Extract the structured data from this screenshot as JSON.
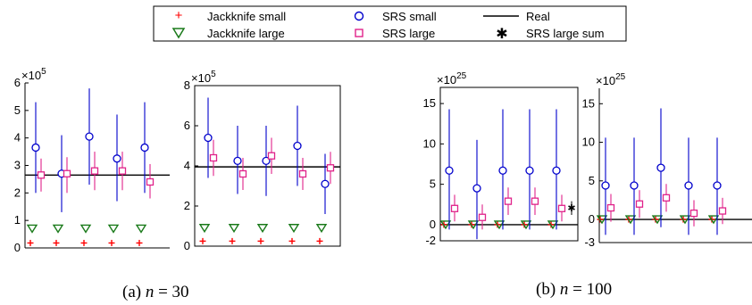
{
  "legend": {
    "jk_small": "Jackknife small",
    "jk_large": "Jackknife large",
    "srs_small": "SRS small",
    "srs_large": "SRS large",
    "real": "Real",
    "srs_sum": "SRS large sum"
  },
  "captions": {
    "a_prefix": "(a)",
    "a_var": "n",
    "a_eq": " = 30",
    "b_prefix": "(b)",
    "b_var": "n",
    "b_eq": " = 100"
  },
  "colors": {
    "jk_small": "#ff0000",
    "jk_large": "#1a7a1a",
    "srs_small": "#0000cc",
    "srs_large": "#e0228a",
    "real": "#000000",
    "srs_sum": "#000000"
  },
  "chart_data": [
    {
      "type": "scatter",
      "panel": "a1",
      "multiplier_base": "×10",
      "multiplier_exp": "5",
      "ylim": [
        0,
        6
      ],
      "yticks": [
        "0",
        "1",
        "2",
        "3",
        "4",
        "5",
        "6"
      ],
      "real": 2.65,
      "groups": [
        {
          "jk_small": 0.18,
          "jk_large": 0.7,
          "srs_small": [
            3.65,
            2.0,
            5.3
          ],
          "srs_large": [
            2.65,
            2.05,
            3.25
          ]
        },
        {
          "jk_small": 0.18,
          "jk_large": 0.7,
          "srs_small": [
            2.7,
            1.3,
            4.1
          ],
          "srs_large": [
            2.7,
            2.0,
            3.3
          ]
        },
        {
          "jk_small": 0.18,
          "jk_large": 0.7,
          "srs_small": [
            4.05,
            2.3,
            5.8
          ],
          "srs_large": [
            2.8,
            2.1,
            3.5
          ]
        },
        {
          "jk_small": 0.18,
          "jk_large": 0.7,
          "srs_small": [
            3.25,
            1.7,
            4.85
          ],
          "srs_large": [
            2.8,
            2.1,
            3.5
          ]
        },
        {
          "jk_small": 0.18,
          "jk_large": 0.7,
          "srs_small": [
            3.65,
            2.0,
            5.3
          ],
          "srs_large": [
            2.4,
            1.8,
            3.05
          ]
        }
      ]
    },
    {
      "type": "scatter",
      "panel": "a2",
      "multiplier_base": "×10",
      "multiplier_exp": "5",
      "ylim": [
        0,
        8
      ],
      "yticks": [
        "0",
        "2",
        "4",
        "6",
        "8"
      ],
      "real": 3.95,
      "groups": [
        {
          "jk_small": 0.25,
          "jk_large": 0.9,
          "srs_small": [
            5.4,
            3.4,
            7.4
          ],
          "srs_large": [
            4.4,
            3.5,
            5.3
          ]
        },
        {
          "jk_small": 0.25,
          "jk_large": 0.9,
          "srs_small": [
            4.25,
            2.6,
            6.0
          ],
          "srs_large": [
            3.6,
            2.8,
            4.4
          ]
        },
        {
          "jk_small": 0.25,
          "jk_large": 0.9,
          "srs_small": [
            4.25,
            2.5,
            6.0
          ],
          "srs_large": [
            4.5,
            3.6,
            5.4
          ]
        },
        {
          "jk_small": 0.25,
          "jk_large": 0.9,
          "srs_small": [
            5.0,
            3.0,
            7.0
          ],
          "srs_large": [
            3.6,
            2.8,
            4.4
          ]
        },
        {
          "jk_small": 0.25,
          "jk_large": 0.9,
          "srs_small": [
            3.1,
            1.6,
            4.6
          ],
          "srs_large": [
            3.9,
            3.1,
            4.7
          ]
        }
      ]
    },
    {
      "type": "scatter",
      "panel": "b1",
      "multiplier_base": "×10",
      "multiplier_exp": "25",
      "ylim": [
        -2,
        17
      ],
      "yticks": [
        "-2",
        "0",
        "5",
        "10",
        "15"
      ],
      "ytick_values": [
        -2,
        0,
        5,
        10,
        15
      ],
      "real": 0,
      "groups": [
        {
          "jk_small": 0,
          "jk_large": 0,
          "srs_small": [
            6.7,
            -0.6,
            14.3
          ],
          "srs_large": [
            2.0,
            0.4,
            3.7
          ]
        },
        {
          "jk_small": 0,
          "jk_large": 0,
          "srs_small": [
            4.5,
            -1.8,
            10.5
          ],
          "srs_large": [
            0.9,
            -0.6,
            2.5
          ]
        },
        {
          "jk_small": 0,
          "jk_large": 0,
          "srs_small": [
            6.7,
            -0.6,
            14.3
          ],
          "srs_large": [
            2.9,
            1.2,
            4.6
          ]
        },
        {
          "jk_small": 0,
          "jk_large": 0,
          "srs_small": [
            6.7,
            -0.6,
            14.3
          ],
          "srs_large": [
            2.9,
            1.2,
            4.6
          ]
        },
        {
          "jk_small": 0,
          "jk_large": 0,
          "srs_small": [
            6.7,
            -0.6,
            14.3
          ],
          "srs_large": [
            2.0,
            0.4,
            3.7
          ]
        }
      ],
      "srs_sum": [
        2.1,
        1.2,
        2.9
      ]
    },
    {
      "type": "scatter",
      "panel": "b2",
      "multiplier_base": "×10",
      "multiplier_exp": "25",
      "ylim": [
        -3,
        17
      ],
      "yticks": [
        "-3",
        "0",
        "5",
        "10",
        "15"
      ],
      "ytick_values": [
        -3,
        0,
        5,
        10,
        15
      ],
      "real": 0,
      "groups": [
        {
          "jk_small": 0,
          "jk_large": 0,
          "srs_small": [
            4.4,
            -2.0,
            10.6
          ],
          "srs_large": [
            1.5,
            -0.3,
            3.3
          ]
        },
        {
          "jk_small": 0,
          "jk_large": 0,
          "srs_small": [
            4.4,
            -2.0,
            10.6
          ],
          "srs_large": [
            2.0,
            0.2,
            3.8
          ]
        },
        {
          "jk_small": 0,
          "jk_large": 0,
          "srs_small": [
            6.7,
            -1.0,
            14.4
          ],
          "srs_large": [
            2.8,
            1.0,
            4.6
          ]
        },
        {
          "jk_small": 0,
          "jk_large": 0,
          "srs_small": [
            4.4,
            -2.0,
            10.6
          ],
          "srs_large": [
            0.8,
            -0.9,
            2.5
          ]
        },
        {
          "jk_small": 0,
          "jk_large": 0,
          "srs_small": [
            4.4,
            -2.0,
            10.6
          ],
          "srs_large": [
            1.1,
            -0.6,
            2.8
          ]
        }
      ]
    }
  ]
}
